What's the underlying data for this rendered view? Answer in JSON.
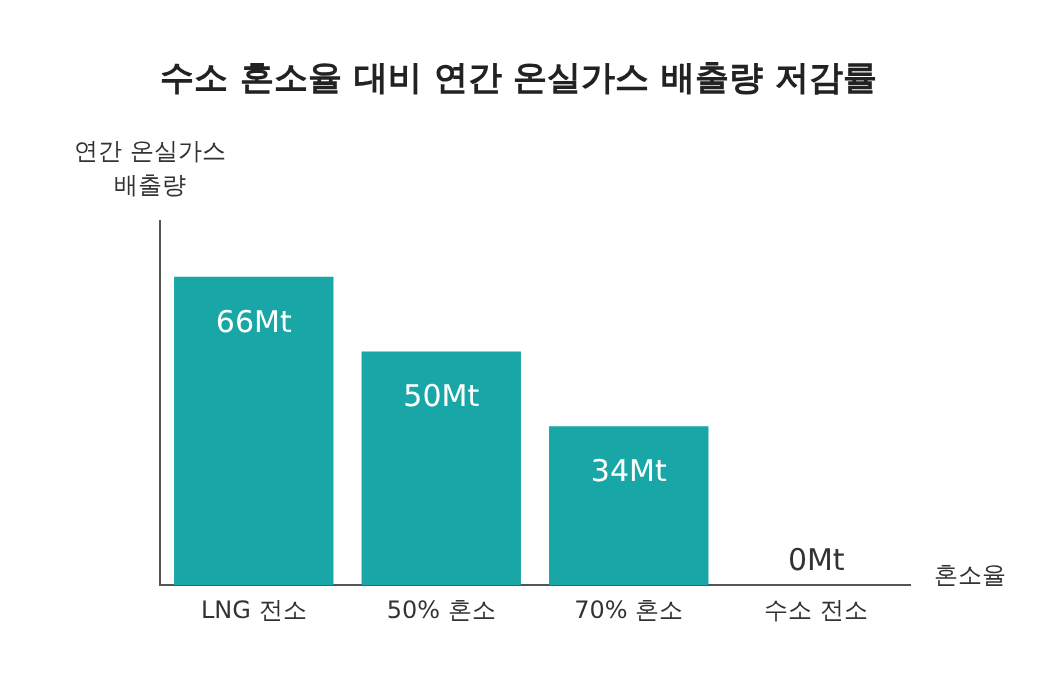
{
  "chart_data": {
    "type": "bar",
    "title": "수소 혼소율 대비 연간 온실가스 배출량 저감률",
    "ylabel": "연간 온실가스\n배출량",
    "xlabel": "혼소율",
    "categories": [
      "LNG 전소",
      "50% 혼소",
      "70% 혼소",
      "수소 전소"
    ],
    "values": [
      66,
      50,
      34,
      0
    ],
    "value_labels": [
      "66Mt",
      "50Mt",
      "34Mt",
      "0Mt"
    ],
    "color": "#18a6a6",
    "ylim": [
      0,
      78
    ],
    "tick_labels": "x",
    "grid": false,
    "legend": false
  }
}
